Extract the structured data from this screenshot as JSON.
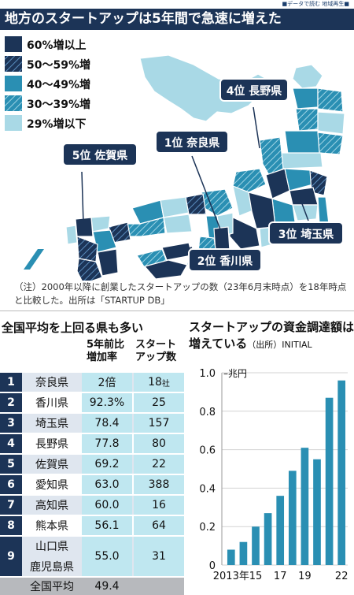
{
  "top_tag": "■データで読む 地域再生■",
  "headline": "地方のスタートアップは5年間で急速に増えた",
  "map": {
    "legend": [
      {
        "label": "60%増以上",
        "color": "#1c3457",
        "hatch": false
      },
      {
        "label": "50〜59%増",
        "color": "#1c3457",
        "hatch": true
      },
      {
        "label": "40〜49%増",
        "color": "#2a8fb3",
        "hatch": false
      },
      {
        "label": "30〜39%増",
        "color": "#2a8fb3",
        "hatch": true
      },
      {
        "label": "29%増以下",
        "color": "#a9d9e6",
        "hatch": false
      }
    ],
    "callouts": {
      "nagano": "4位 長野県",
      "nara": "1位 奈良県",
      "saga": "5位 佐賀県",
      "saitama": "3位 埼玉県",
      "kagawa": "2位 香川県"
    }
  },
  "note": "（注）2000年以降に創業したスタートアップの数（23年6月末時点）を18年時点と比較した。出所は「STARTUP DB」",
  "table": {
    "title": "全国平均を上回る県も多い",
    "col_rate": [
      "5年前比",
      "増加率"
    ],
    "col_count": [
      "スタート",
      "アップ数"
    ],
    "rows": [
      {
        "rank": "1",
        "pref": "奈良県",
        "rate": "2倍",
        "count": "18",
        "count_unit": "社"
      },
      {
        "rank": "2",
        "pref": "香川県",
        "rate": "92.3%",
        "count": "25"
      },
      {
        "rank": "3",
        "pref": "埼玉県",
        "rate": "78.4",
        "count": "157"
      },
      {
        "rank": "4",
        "pref": "長野県",
        "rate": "77.8",
        "count": "80"
      },
      {
        "rank": "5",
        "pref": "佐賀県",
        "rate": "69.2",
        "count": "22"
      },
      {
        "rank": "6",
        "pref": "愛知県",
        "rate": "63.0",
        "count": "388"
      },
      {
        "rank": "7",
        "pref": "高知県",
        "rate": "60.0",
        "count": "16"
      },
      {
        "rank": "8",
        "pref": "熊本県",
        "rate": "56.1",
        "count": "64"
      },
      {
        "rank": "9",
        "pref": "山口県",
        "pref2": "鹿児島県",
        "rate": "55.0",
        "count": "31"
      }
    ],
    "average": {
      "pref": "全国平均",
      "rate": "49.4"
    }
  },
  "chart_title": "スタートアップの資金調達額は増えている",
  "chart_source": "（出所）INITIAL",
  "chart_data": {
    "type": "bar",
    "title": "スタートアップの資金調達額は増えている",
    "unit": "兆円",
    "categories": [
      "2013",
      "2014",
      "2015",
      "2016",
      "2017",
      "2018",
      "2019",
      "2020",
      "2021",
      "2022"
    ],
    "values": [
      0.08,
      0.12,
      0.2,
      0.27,
      0.36,
      0.49,
      0.61,
      0.55,
      0.87,
      0.96
    ],
    "ylim": [
      0,
      1.0
    ],
    "yticks": [
      "1.0",
      "0.8",
      "0.6",
      "0.4",
      "0.2",
      "0"
    ],
    "xtick_labels": [
      "2013年",
      "15",
      "17",
      "19",
      "22"
    ],
    "bar_color": "#2a8fb3",
    "grid": true
  }
}
